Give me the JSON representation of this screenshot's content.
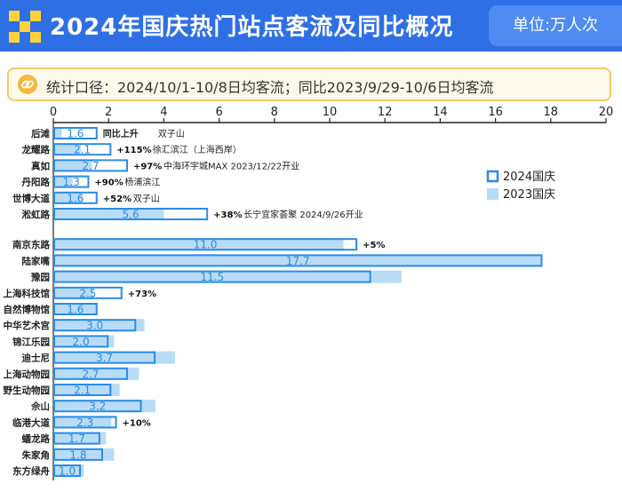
{
  "header": {
    "title": "2024年国庆热门站点客流及同比概况",
    "unit": "单位:万人次"
  },
  "note": {
    "text": "统计口径：2024/10/1-10/8日均客流；同比2023/9/29-10/6日均客流"
  },
  "colors": {
    "bar_2023": "#b8dcf7",
    "bar_2024_border": "#2b8be6",
    "value_text": "#2b8be6",
    "header_bg": "#2f6fe6"
  },
  "chart_data": {
    "type": "bar",
    "orientation": "horizontal",
    "xlim": [
      0,
      20
    ],
    "ticks": [
      "0",
      "2",
      "4",
      "6",
      "8",
      "10",
      "12",
      "14",
      "16",
      "18",
      "20"
    ],
    "legend": {
      "placement": "right",
      "items": [
        "2024国庆",
        "2023国庆"
      ]
    },
    "groups": [
      {
        "rows": [
          {
            "station": "后滩",
            "v2024": 1.6,
            "v2023": 0.3,
            "label": "1.6",
            "change": "",
            "note": "同比上升",
            "extra": "双子山"
          },
          {
            "station": "龙耀路",
            "v2024": 2.1,
            "v2023": 1.0,
            "label": "2.1",
            "change": "+115%",
            "note": "徐汇滨江（上海西岸）",
            "extra": ""
          },
          {
            "station": "真如",
            "v2024": 2.7,
            "v2023": 1.4,
            "label": "2.7",
            "change": "+97%",
            "note": "中海环宇城MAX  2023/12/22开业",
            "extra": ""
          },
          {
            "station": "丹阳路",
            "v2024": 1.3,
            "v2023": 0.7,
            "label": "1.3",
            "change": "+90%",
            "note": "杨浦滨江",
            "extra": ""
          },
          {
            "station": "世博大道",
            "v2024": 1.6,
            "v2023": 1.05,
            "label": "1.6",
            "change": "+52%",
            "note": "双子山",
            "extra": ""
          },
          {
            "station": "淞虹路",
            "v2024": 5.6,
            "v2023": 4.0,
            "label": "5.6",
            "change": "+38%",
            "note": "长宁宜家荟聚  2024/9/26开业",
            "extra": ""
          }
        ]
      },
      {
        "rows": [
          {
            "station": "南京东路",
            "v2024": 11.0,
            "v2023": 10.5,
            "label": "11.0",
            "change": "+5%",
            "note": "",
            "extra": ""
          },
          {
            "station": "陆家嘴",
            "v2024": 17.7,
            "v2023": 17.7,
            "label": "17.7",
            "change": "",
            "note": "",
            "extra": ""
          },
          {
            "station": "豫园",
            "v2024": 11.5,
            "v2023": 12.6,
            "label": "11.5",
            "change": "",
            "note": "",
            "extra": ""
          },
          {
            "station": "上海科技馆",
            "v2024": 2.5,
            "v2023": 1.45,
            "label": "2.5",
            "change": "+73%",
            "note": "",
            "extra": ""
          },
          {
            "station": "自然博物馆",
            "v2024": 1.6,
            "v2023": 1.6,
            "label": "1.6",
            "change": "",
            "note": "",
            "extra": ""
          },
          {
            "station": "中华艺术宫",
            "v2024": 3.0,
            "v2023": 3.3,
            "label": "3.0",
            "change": "",
            "note": "",
            "extra": ""
          },
          {
            "station": "锦江乐园",
            "v2024": 2.0,
            "v2023": 2.2,
            "label": "2.0",
            "change": "",
            "note": "",
            "extra": ""
          },
          {
            "station": "迪士尼",
            "v2024": 3.7,
            "v2023": 4.4,
            "label": "3.7",
            "change": "",
            "note": "",
            "extra": ""
          },
          {
            "station": "上海动物园",
            "v2024": 2.7,
            "v2023": 3.1,
            "label": "2.7",
            "change": "",
            "note": "",
            "extra": ""
          },
          {
            "station": "野生动物园",
            "v2024": 2.1,
            "v2023": 2.4,
            "label": "2.1",
            "change": "",
            "note": "",
            "extra": ""
          },
          {
            "station": "佘山",
            "v2024": 3.2,
            "v2023": 3.7,
            "label": "3.2",
            "change": "",
            "note": "",
            "extra": ""
          },
          {
            "station": "临港大道",
            "v2024": 2.3,
            "v2023": 2.1,
            "label": "2.3",
            "change": "+10%",
            "note": "",
            "extra": ""
          },
          {
            "station": "蟠龙路",
            "v2024": 1.7,
            "v2023": 1.9,
            "label": "1.7",
            "change": "",
            "note": "",
            "extra": ""
          },
          {
            "station": "朱家角",
            "v2024": 1.8,
            "v2023": 2.2,
            "label": "1.8",
            "change": "",
            "note": "",
            "extra": ""
          },
          {
            "station": "东方绿舟",
            "v2024": 1.0,
            "v2023": 1.1,
            "label": "1.0",
            "change": "",
            "note": "",
            "extra": ""
          }
        ]
      }
    ]
  }
}
